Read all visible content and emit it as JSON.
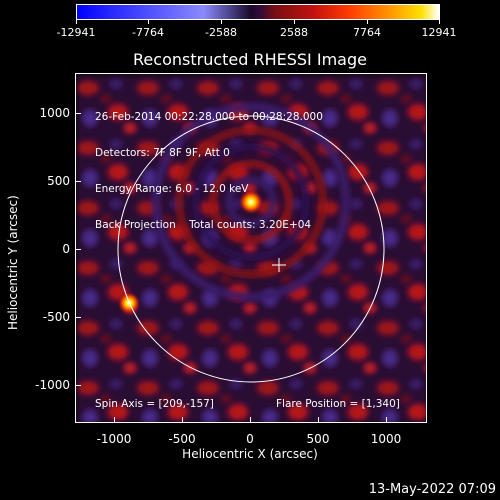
{
  "colorbar": {
    "ticks": [
      "-12941",
      "-7764",
      "-2588",
      "2588",
      "7764",
      "12941"
    ]
  },
  "title": "Reconstructed RHESSI Image",
  "info_lines": [
    "26-Feb-2014 00:22:28.000 to 00:28:28.000",
    "Detectors: 7F 8F 9F, Att 0",
    "Energy Range: 6.0 - 12.0 keV",
    "Back Projection    Total counts: 3.20E+04"
  ],
  "spin_axis": "Spin Axis = [209,-157]",
  "flare_position": "Flare Position = [1,340]",
  "axes": {
    "ylabels": [
      "1000",
      "500",
      "0",
      "-500",
      "-1000"
    ],
    "xlabels": [
      "-1000",
      "-500",
      "0",
      "500",
      "1000"
    ],
    "xtitle": "Heliocentric X (arcsec)",
    "ytitle": "Heliocentric Y (arcsec)"
  },
  "date_stamp": "13-May-2022 07:09"
}
